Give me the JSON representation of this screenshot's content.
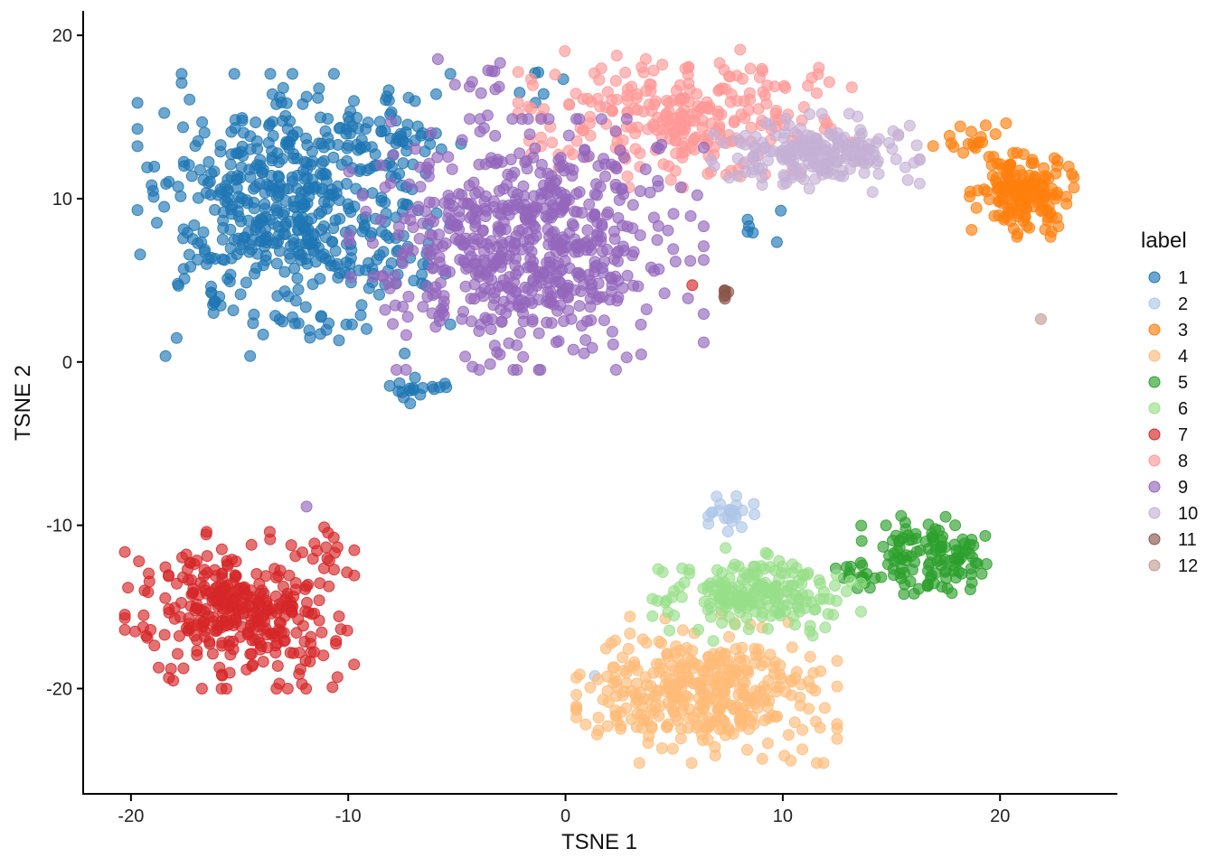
{
  "chart_data": {
    "type": "scatter",
    "title": "",
    "xlabel": "TSNE 1",
    "ylabel": "TSNE 2",
    "xlim": [
      -22.2,
      25.4
    ],
    "ylim": [
      -26.5,
      21.5
    ],
    "xticks": [
      -20,
      -10,
      0,
      10,
      20
    ],
    "yticks": [
      -20,
      -10,
      0,
      10,
      20
    ],
    "xtick_labels": [
      "-20",
      "-10",
      "0",
      "10",
      "20"
    ],
    "ytick_labels": [
      "-20",
      "-10",
      "0",
      "10",
      "20"
    ],
    "grid": false,
    "point_opacity": 0.65,
    "legend": {
      "title": "label",
      "placement": "right"
    },
    "series": [
      {
        "name": "1",
        "color": "#1f77b4",
        "clusters": [
          {
            "cx": -12.5,
            "cy": 9.0,
            "sx": 3.0,
            "sy": 3.6,
            "n": 540
          },
          {
            "cx": -8.0,
            "cy": 14.5,
            "sx": 1.5,
            "sy": 1.2,
            "n": 40
          },
          {
            "cx": -7.5,
            "cy": -1.6,
            "sx": 0.6,
            "sy": 0.5,
            "n": 12
          },
          {
            "cx": -6.2,
            "cy": -1.6,
            "sx": 0.4,
            "sy": 0.2,
            "n": 6
          },
          {
            "cx": 8.8,
            "cy": 8.3,
            "sx": 0.5,
            "sy": 0.4,
            "n": 6
          },
          {
            "cx": -1.0,
            "cy": 17.0,
            "sx": 0.5,
            "sy": 0.8,
            "n": 6
          },
          {
            "cx": -17.8,
            "cy": 4.7,
            "sx": 0.05,
            "sy": 0.05,
            "n": 2
          }
        ]
      },
      {
        "name": "2",
        "color": "#aec7e8",
        "clusters": [
          {
            "cx": 7.5,
            "cy": -9.3,
            "sx": 0.5,
            "sy": 0.45,
            "n": 26
          },
          {
            "cx": 1.3,
            "cy": -19.2,
            "sx": 0.05,
            "sy": 0.05,
            "n": 1
          }
        ]
      },
      {
        "name": "3",
        "color": "#ff7f0e",
        "clusters": [
          {
            "cx": 21.0,
            "cy": 10.3,
            "sx": 1.0,
            "sy": 1.1,
            "n": 160
          },
          {
            "cx": 18.6,
            "cy": 13.6,
            "sx": 0.7,
            "sy": 0.6,
            "n": 18
          }
        ]
      },
      {
        "name": "4",
        "color": "#ffbb78",
        "clusters": [
          {
            "cx": 6.5,
            "cy": -20.0,
            "sx": 2.5,
            "sy": 1.9,
            "n": 380
          }
        ]
      },
      {
        "name": "5",
        "color": "#2ca02c",
        "clusters": [
          {
            "cx": 16.7,
            "cy": -11.8,
            "sx": 1.3,
            "sy": 1.1,
            "n": 120
          },
          {
            "cx": 13.5,
            "cy": -13.0,
            "sx": 0.7,
            "sy": 0.6,
            "n": 14
          }
        ]
      },
      {
        "name": "6",
        "color": "#98df8a",
        "clusters": [
          {
            "cx": 8.8,
            "cy": -14.2,
            "sx": 2.0,
            "sy": 1.2,
            "n": 200
          }
        ]
      },
      {
        "name": "7",
        "color": "#d62728",
        "clusters": [
          {
            "cx": -15.0,
            "cy": -15.2,
            "sx": 2.2,
            "sy": 2.0,
            "n": 340
          },
          {
            "cx": -11.0,
            "cy": -11.0,
            "sx": 0.6,
            "sy": 0.5,
            "n": 8
          },
          {
            "cx": 5.9,
            "cy": 4.6,
            "sx": 0.05,
            "sy": 0.05,
            "n": 1
          }
        ]
      },
      {
        "name": "8",
        "color": "#ff9896",
        "clusters": [
          {
            "cx": 5.5,
            "cy": 15.0,
            "sx": 3.2,
            "sy": 1.8,
            "n": 270
          }
        ]
      },
      {
        "name": "9",
        "color": "#9467bd",
        "clusters": [
          {
            "cx": -1.8,
            "cy": 7.2,
            "sx": 3.4,
            "sy": 3.2,
            "n": 640
          },
          {
            "cx": -4.2,
            "cy": 17.5,
            "sx": 0.8,
            "sy": 1.0,
            "n": 12
          },
          {
            "cx": -11.8,
            "cy": -8.9,
            "sx": 0.05,
            "sy": 0.05,
            "n": 1
          }
        ]
      },
      {
        "name": "10",
        "color": "#c5b0d5",
        "clusters": [
          {
            "cx": 11.5,
            "cy": 12.8,
            "sx": 2.0,
            "sy": 1.0,
            "n": 200
          }
        ]
      },
      {
        "name": "11",
        "color": "#8c564b",
        "clusters": [
          {
            "cx": 7.4,
            "cy": 4.1,
            "sx": 0.25,
            "sy": 0.25,
            "n": 7
          }
        ]
      },
      {
        "name": "12",
        "color": "#c49c94",
        "clusters": [
          {
            "cx": 21.9,
            "cy": 2.6,
            "sx": 0.05,
            "sy": 0.05,
            "n": 1
          }
        ]
      }
    ]
  }
}
